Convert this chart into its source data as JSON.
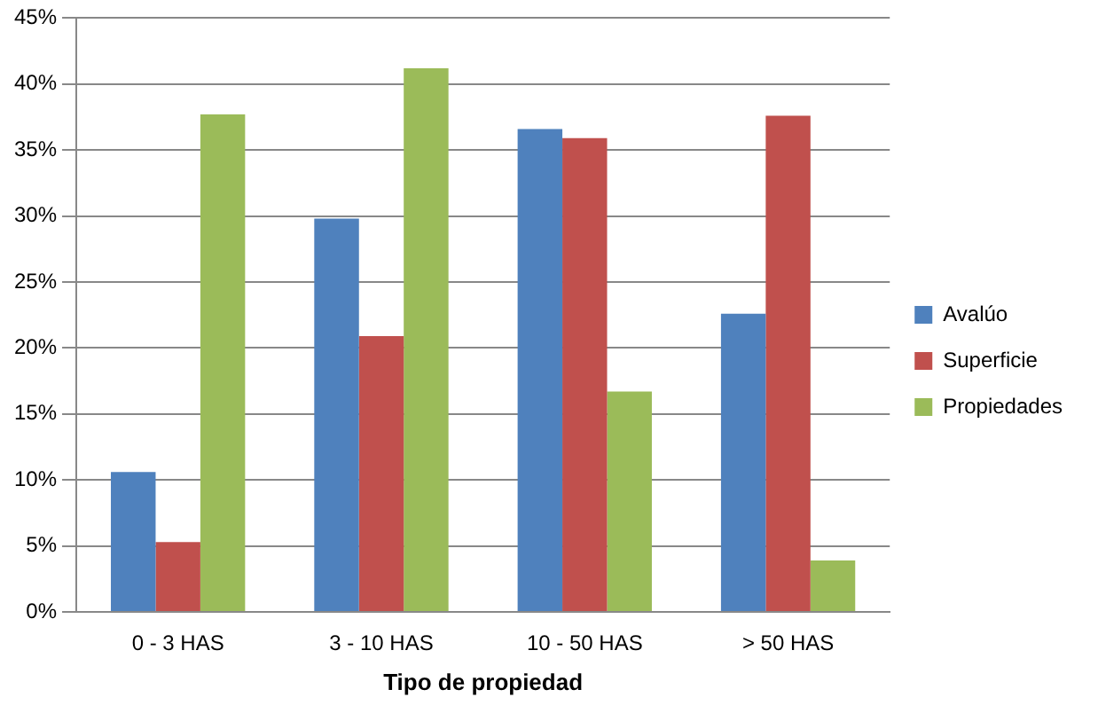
{
  "chart_data": {
    "type": "bar",
    "xlabel": "Tipo de propiedad",
    "categories": [
      "0 - 3 HAS",
      "3 - 10 HAS",
      "10 - 50 HAS",
      "> 50 HAS"
    ],
    "series": [
      {
        "name": "Avalúo",
        "color": "#4f81bd",
        "values": [
          10.6,
          29.8,
          36.6,
          22.6
        ]
      },
      {
        "name": "Superficie",
        "color": "#c0504d",
        "values": [
          5.3,
          20.9,
          35.9,
          37.6
        ]
      },
      {
        "name": "Propiedades",
        "color": "#9bbb59",
        "values": [
          37.7,
          41.2,
          16.7,
          3.9
        ]
      }
    ],
    "ylim": [
      0,
      45
    ],
    "yticks": [
      {
        "value": 0,
        "label": "0%"
      },
      {
        "value": 5,
        "label": "5%"
      },
      {
        "value": 10,
        "label": "10%"
      },
      {
        "value": 15,
        "label": "15%"
      },
      {
        "value": 20,
        "label": "20%"
      },
      {
        "value": 25,
        "label": "25%"
      },
      {
        "value": 30,
        "label": "30%"
      },
      {
        "value": 35,
        "label": "35%"
      },
      {
        "value": 40,
        "label": "40%"
      },
      {
        "value": 45,
        "label": "45%"
      }
    ],
    "grid": "y",
    "legend": "right"
  }
}
